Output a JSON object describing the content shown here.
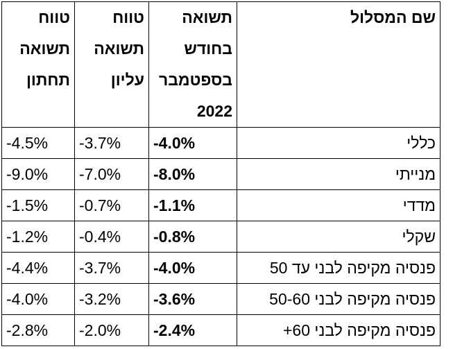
{
  "table": {
    "headers": [
      "שם המסלול",
      "תשואה בחודש בספטמבר 2022",
      "טווח תשואה עליון",
      "טווח תשואה תחתון"
    ],
    "rows": [
      {
        "name": "כללי",
        "return": "-4.0%",
        "upper": "-3.7%",
        "lower": "-4.5%"
      },
      {
        "name": "מנייתי",
        "return": "-8.0%",
        "upper": "-7.0%",
        "lower": "-9.0%"
      },
      {
        "name": "מדדי",
        "return": "-1.1%",
        "upper": "-0.7%",
        "lower": "-1.5%"
      },
      {
        "name": "שקלי",
        "return": "-0.8%",
        "upper": "-0.4%",
        "lower": "-1.2%"
      },
      {
        "name": "פנסיה מקיפה לבני עד 50",
        "return": "-4.0%",
        "upper": "-3.7%",
        "lower": "-4.4%"
      },
      {
        "name": "פנסיה מקיפה לבני 50-60",
        "return": "-3.6%",
        "upper": "-3.2%",
        "lower": "-4.0%"
      },
      {
        "name": "פנסיה מקיפה לבני 60+",
        "return": "-2.4%",
        "upper": "-2.0%",
        "lower": "-2.8%"
      }
    ]
  }
}
